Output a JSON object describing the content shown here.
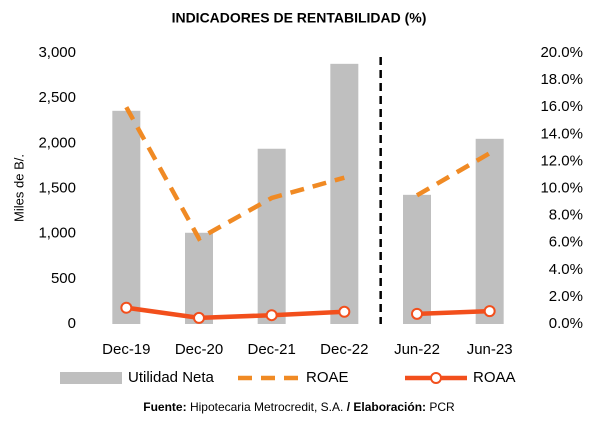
{
  "chart_data": {
    "type": "bar-line",
    "title": "INDICADORES DE RENTABILIDAD (%)",
    "y_label": "Miles de B/.",
    "categories": [
      "Dec-19",
      "Dec-20",
      "Dec-21",
      "Dec-22",
      "Jun-22",
      "Jun-23"
    ],
    "divider": {
      "after": "Dec-22"
    },
    "series": [
      {
        "name": "Utilidad Neta",
        "type": "bar",
        "color": "#bfbfbf",
        "axis": "y",
        "values": [
          2360,
          1010,
          1940,
          2880,
          1430,
          2050
        ]
      },
      {
        "name": "ROAE",
        "type": "line",
        "style": "dashed",
        "color": "#f08a24",
        "axis": "y2",
        "values": [
          16.0,
          6.3,
          9.3,
          10.8,
          9.5,
          12.6
        ]
      },
      {
        "name": "ROAA",
        "type": "line",
        "style": "solid-marker",
        "color": "#f24f1c",
        "axis": "y2",
        "values": [
          1.2,
          0.45,
          0.65,
          0.9,
          0.75,
          0.95
        ]
      }
    ],
    "ylim": [
      0,
      3000
    ],
    "yticks": [
      0,
      500,
      {
        "value": 1000,
        "label": "1,000"
      },
      {
        "value": 1500,
        "label": "1,500"
      },
      {
        "value": 2000,
        "label": "2,000"
      },
      {
        "value": 2500,
        "label": "2,500"
      },
      {
        "value": 3000,
        "label": "3,000"
      }
    ],
    "y2lim": [
      0,
      20
    ],
    "y2ticks": [
      {
        "value": 0,
        "label": "0.0%"
      },
      {
        "value": 2,
        "label": "2.0%"
      },
      {
        "value": 4,
        "label": "4.0%"
      },
      {
        "value": 6,
        "label": "6.0%"
      },
      {
        "value": 8,
        "label": "8.0%"
      },
      {
        "value": 10,
        "label": "10.0%"
      },
      {
        "value": 12,
        "label": "12.0%"
      },
      {
        "value": 14,
        "label": "14.0%"
      },
      {
        "value": 16,
        "label": "16.0%"
      },
      {
        "value": 18,
        "label": "18.0%"
      },
      {
        "value": 20,
        "label": "20.0%"
      }
    ],
    "grid": false,
    "legend": "bottom"
  },
  "footer": {
    "source_label": "Fuente:",
    "source": "Hipotecaria Metrocredit, S.A.",
    "author_label": "/ Elaboración:",
    "author": "PCR"
  }
}
